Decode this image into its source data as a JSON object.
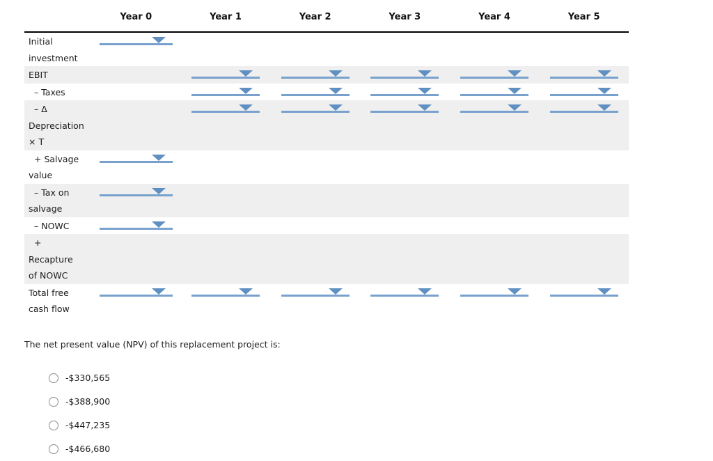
{
  "table": {
    "columns": [
      "Year 0",
      "Year 1",
      "Year 2",
      "Year 3",
      "Year 4",
      "Year 5"
    ],
    "rows": [
      {
        "label": "Initial\ninvestment",
        "signed": false,
        "shaded": false,
        "dropdown_columns": [
          "Year 0"
        ]
      },
      {
        "label": "EBIT",
        "signed": false,
        "shaded": true,
        "dropdown_columns": [
          "Year 1",
          "Year 2",
          "Year 3",
          "Year 4",
          "Year 5"
        ]
      },
      {
        "label": "– Taxes",
        "signed": true,
        "shaded": false,
        "dropdown_columns": [
          "Year 1",
          "Year 2",
          "Year 3",
          "Year 4",
          "Year 5"
        ]
      },
      {
        "label": "– Δ\nDepreciation\n× T",
        "signed": true,
        "shaded": true,
        "dropdown_columns": [
          "Year 1",
          "Year 2",
          "Year 3",
          "Year 4",
          "Year 5"
        ]
      },
      {
        "label": "+ Salvage\nvalue",
        "signed": true,
        "shaded": false,
        "dropdown_columns": [
          "Year 0"
        ]
      },
      {
        "label": "– Tax on\nsalvage",
        "signed": true,
        "shaded": true,
        "dropdown_columns": [
          "Year 0"
        ]
      },
      {
        "label": "– NOWC",
        "signed": true,
        "shaded": false,
        "dropdown_columns": [
          "Year 0"
        ]
      },
      {
        "label": "+\nRecapture\nof NOWC",
        "signed": true,
        "shaded": true,
        "dropdown_columns": []
      },
      {
        "label": "Total free\ncash flow",
        "signed": false,
        "shaded": false,
        "dropdown_columns": [
          "Year 0",
          "Year 1",
          "Year 2",
          "Year 3",
          "Year 4",
          "Year 5"
        ]
      }
    ],
    "dropdown_state": "empty",
    "dropdown_icon": "chevron-down-icon"
  },
  "question": {
    "text": "The net present value (NPV) of this replacement project is:"
  },
  "options": [
    {
      "label": "-$330,565",
      "selected": false
    },
    {
      "label": "-$388,900",
      "selected": false
    },
    {
      "label": "-$447,235",
      "selected": false
    },
    {
      "label": "-$466,680",
      "selected": false
    }
  ],
  "colors": {
    "accent_triangle": "#6090c2",
    "accent_underline": "#78a2cd",
    "row_shade": "#efefef",
    "header_rule": "#000000",
    "text": "#1c1c1c",
    "radio_border": "#8c8c8c"
  }
}
